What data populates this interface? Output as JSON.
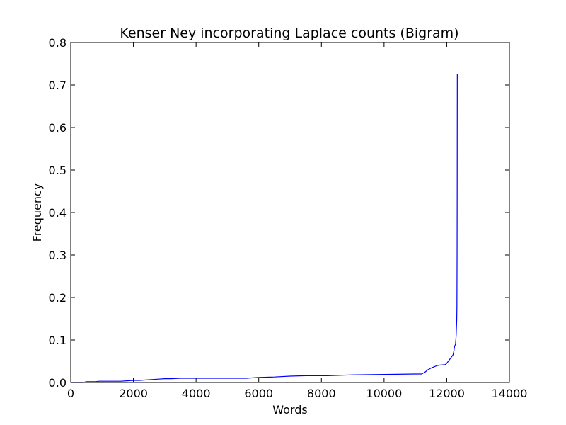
{
  "chart_data": {
    "type": "line",
    "title": "Kenser Ney incorporating Laplace counts (Bigram)",
    "xlabel": "Words",
    "ylabel": "Frequency",
    "xlim": [
      0,
      14000
    ],
    "ylim": [
      0.0,
      0.8
    ],
    "xticks": [
      "0",
      "2000",
      "4000",
      "6000",
      "8000",
      "10000",
      "12000",
      "14000"
    ],
    "yticks": [
      "0.0",
      "0.1",
      "0.2",
      "0.3",
      "0.4",
      "0.5",
      "0.6",
      "0.7",
      "0.8"
    ],
    "grid": false,
    "series": [
      {
        "color": "#0000ff",
        "x": [
          0,
          400,
          500,
          800,
          900,
          1600,
          1800,
          2000,
          2200,
          2400,
          2800,
          3000,
          3200,
          3500,
          4000,
          5000,
          5600,
          6000,
          6500,
          7000,
          7500,
          8000,
          8200,
          9000,
          10000,
          11000,
          11200,
          11300,
          11400,
          11500,
          11600,
          11700,
          11800,
          11950,
          12000,
          12050,
          12100,
          12150,
          12200,
          12230,
          12250,
          12280,
          12300,
          12310,
          12320,
          12325,
          12330,
          12333,
          12335,
          12337
        ],
        "y": [
          0.0,
          0.0,
          0.002,
          0.002,
          0.003,
          0.003,
          0.004,
          0.005,
          0.005,
          0.006,
          0.008,
          0.009,
          0.009,
          0.01,
          0.01,
          0.01,
          0.01,
          0.012,
          0.013,
          0.015,
          0.016,
          0.016,
          0.016,
          0.018,
          0.019,
          0.02,
          0.02,
          0.024,
          0.03,
          0.034,
          0.037,
          0.04,
          0.041,
          0.042,
          0.045,
          0.05,
          0.055,
          0.06,
          0.065,
          0.075,
          0.085,
          0.09,
          0.11,
          0.13,
          0.15,
          0.18,
          0.3,
          0.45,
          0.6,
          0.725
        ]
      }
    ]
  }
}
